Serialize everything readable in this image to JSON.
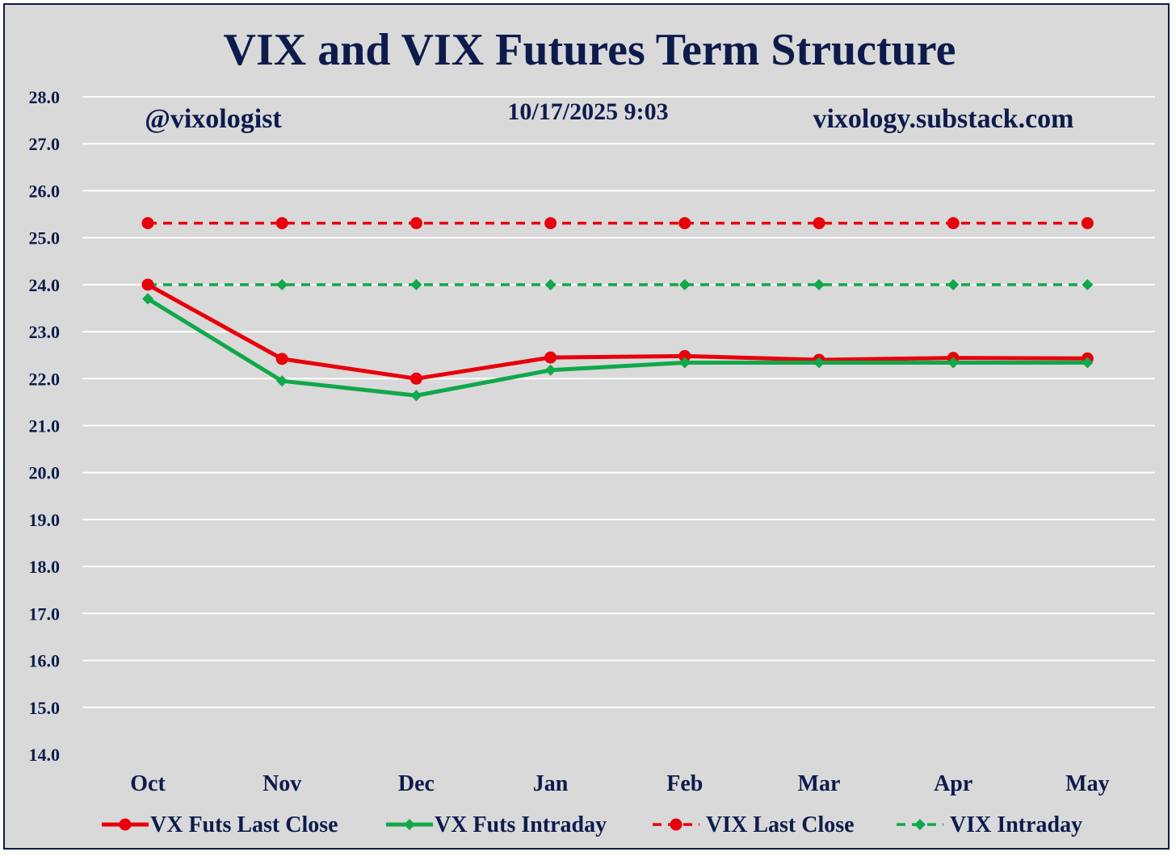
{
  "chart_data": {
    "type": "line",
    "title": "VIX and VIX Futures Term Structure",
    "annotations": {
      "handle": "@vixologist",
      "timestamp": "10/17/2025 9:03",
      "site": "vixology.substack.com"
    },
    "categories": [
      "Oct",
      "Nov",
      "Dec",
      "Jan",
      "Feb",
      "Mar",
      "Apr",
      "May"
    ],
    "ylim": [
      14.0,
      28.0
    ],
    "ytick_step": 1.0,
    "yticks": [
      "14.0",
      "15.0",
      "16.0",
      "17.0",
      "18.0",
      "19.0",
      "20.0",
      "21.0",
      "22.0",
      "23.0",
      "24.0",
      "25.0",
      "26.0",
      "27.0",
      "28.0"
    ],
    "grid": true,
    "legend_position": "bottom",
    "xlabel": "",
    "ylabel": "",
    "series": [
      {
        "name": "VX Futs Last Close",
        "color": "#e8000b",
        "style": "solid",
        "marker": "circle",
        "values": [
          24.0,
          22.42,
          22.0,
          22.45,
          22.48,
          22.4,
          22.44,
          22.43
        ]
      },
      {
        "name": "VX Futs Intraday",
        "color": "#10a84a",
        "style": "solid",
        "marker": "diamond",
        "values": [
          23.7,
          21.95,
          21.64,
          22.18,
          22.34,
          22.34,
          22.34,
          22.34
        ]
      },
      {
        "name": "VIX Last Close",
        "color": "#e8000b",
        "style": "dashed",
        "marker": "circle",
        "values": [
          25.31,
          25.31,
          25.31,
          25.31,
          25.31,
          25.31,
          25.31,
          25.31
        ]
      },
      {
        "name": "VIX Intraday",
        "color": "#10a84a",
        "style": "dashed",
        "marker": "diamond",
        "values": [
          24.0,
          24.0,
          24.0,
          24.0,
          24.0,
          24.0,
          24.0,
          24.0
        ]
      }
    ]
  }
}
